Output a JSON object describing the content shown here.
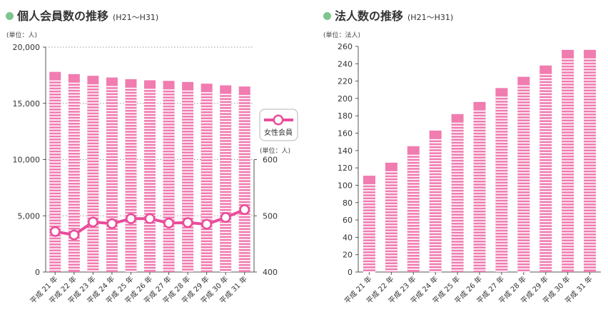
{
  "colors": {
    "bar": "#f07cb0",
    "bar_stripe": "#ffffff",
    "line": "#e94c9a",
    "dot": "#7cc58f",
    "grid": "#9a9a9a",
    "axis": "#555555"
  },
  "left": {
    "title": "個人会員数の推移",
    "subtitle": "(H21〜H31)",
    "unit_left": "(単位：人)",
    "unit_right": "(単位：人)",
    "legend_label": "女性会員"
  },
  "right": {
    "title": "法人数の推移",
    "subtitle": "(H21〜H31)",
    "unit": "(単位：法人)"
  },
  "chart_data": [
    {
      "type": "bar",
      "title": "個人会員数の推移",
      "categories": [
        "平成 21 年",
        "平成 22 年",
        "平成 23 年",
        "平成 24 年",
        "平成 25 年",
        "平成 26 年",
        "平成 27 年",
        "平成 28 年",
        "平成 29 年",
        "平成 30 年",
        "平成 31 年"
      ],
      "series": [
        {
          "axis": "left",
          "type": "bar",
          "values": [
            17800,
            17600,
            17450,
            17300,
            17150,
            17050,
            17000,
            16900,
            16750,
            16600,
            16500
          ]
        },
        {
          "name": "女性会員",
          "axis": "right",
          "type": "line",
          "values": [
            472,
            466,
            489,
            486,
            495,
            495,
            487,
            488,
            485,
            497,
            511
          ]
        }
      ],
      "ylabel": "(単位：人)",
      "ylim": [
        0,
        20000
      ],
      "yticks": [
        "0",
        "5,000",
        "10,000",
        "15,000",
        "20,000"
      ],
      "y2label": "(単位：人)",
      "y2lim": [
        400,
        600
      ],
      "y2ticks": [
        "400",
        "500",
        "600"
      ],
      "grid": true,
      "legend": "right"
    },
    {
      "type": "bar",
      "title": "法人数の推移",
      "categories": [
        "平成 21 年",
        "平成 22 年",
        "平成 23 年",
        "平成 24 年",
        "平成 25 年",
        "平成 26 年",
        "平成 27 年",
        "平成 28 年",
        "平成 29 年",
        "平成 30 年",
        "平成 31 年"
      ],
      "values": [
        111,
        126,
        145,
        163,
        182,
        196,
        212,
        225,
        238,
        256,
        256
      ],
      "ylabel": "(単位：法人)",
      "ylim": [
        0,
        260
      ],
      "yticks": [
        "0",
        "20",
        "40",
        "60",
        "80",
        "100",
        "120",
        "140",
        "160",
        "180",
        "200",
        "220",
        "240",
        "260"
      ],
      "grid": false
    }
  ]
}
